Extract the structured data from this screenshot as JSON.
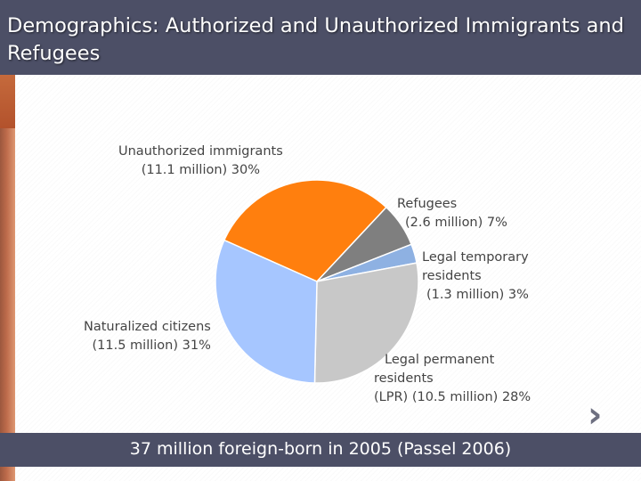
{
  "slide": {
    "title": "Demographics: Authorized and Unauthorized Immigrants and Refugees",
    "footer": "37 million foreign-born in 2005 (Passel 2006)",
    "next_icon": "chevron-right-icon"
  },
  "chart_data": {
    "type": "pie",
    "title": "",
    "slices": [
      {
        "label_lines": [
          "Unauthorized immigrants",
          "(11.1 million)  30%"
        ],
        "value": 30,
        "color": "#ff7f0e"
      },
      {
        "label_lines": [
          "Refugees",
          "(2.6 million)  7%"
        ],
        "value": 7,
        "color": "#7f7f7f"
      },
      {
        "label_lines": [
          "Legal temporary",
          "residents",
          "(1.3 million)  3%"
        ],
        "value": 3,
        "color": "#8eb1e2"
      },
      {
        "label_lines": [
          "Legal permanent",
          "residents",
          "(LPR) (10.5 million)  28%"
        ],
        "value": 28,
        "color": "#c8c8c8"
      },
      {
        "label_lines": [
          "Naturalized citizens",
          "(11.5 million)  31%"
        ],
        "value": 31,
        "color": "#a6c6ff"
      }
    ]
  },
  "colors": {
    "bar": "#4c4f66",
    "accent": "#b3522c"
  }
}
